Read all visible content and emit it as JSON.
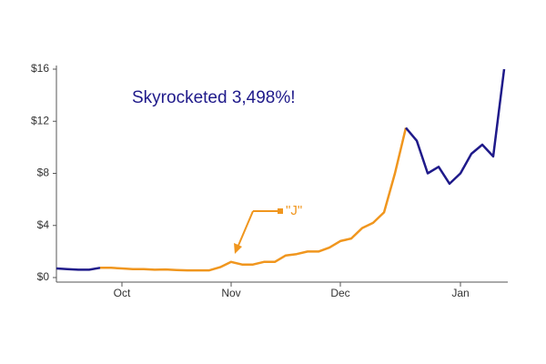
{
  "chart_data": {
    "type": "line",
    "annotations": [
      "Skyrocketed 3,498%!",
      "\"J\""
    ],
    "categories": [
      null,
      null,
      null,
      null,
      null,
      null,
      "Oct",
      null,
      null,
      null,
      null,
      null,
      null,
      null,
      null,
      null,
      "Nov",
      null,
      null,
      null,
      null,
      null,
      null,
      null,
      null,
      null,
      "Dec",
      null,
      null,
      null,
      null,
      null,
      null,
      null,
      null,
      null,
      null,
      "Jan",
      null,
      null,
      null,
      null
    ],
    "series": [
      {
        "color": "#f0961e",
        "values": [
          null,
          null,
          null,
          null,
          0.75,
          0.75,
          0.7,
          0.65,
          0.65,
          0.6,
          0.62,
          0.58,
          0.55,
          0.55,
          0.55,
          0.8,
          1.2,
          1.0,
          1.0,
          1.2,
          1.2,
          1.7,
          1.8,
          2.0,
          2.0,
          2.3,
          2.8,
          3.0,
          3.8,
          4.2,
          5.0,
          8.0,
          11.5,
          null,
          null,
          null,
          null,
          null,
          null,
          null,
          null,
          null
        ]
      },
      {
        "color": "#1f1a8a",
        "values": [
          0.7,
          0.65,
          0.6,
          0.6,
          0.75,
          null,
          null,
          null,
          null,
          null,
          null,
          null,
          null,
          null,
          null,
          null,
          null,
          null,
          null,
          null,
          null,
          null,
          null,
          null,
          null,
          null,
          null,
          null,
          null,
          null,
          null,
          null,
          11.5,
          10.5,
          8.0,
          8.5,
          7.2,
          8.0,
          9.5,
          10.2,
          9.3,
          16.0
        ]
      }
    ],
    "ylim": [
      0,
      16
    ],
    "yticks": [
      {
        "value": 0,
        "label": "$0"
      },
      {
        "value": 4,
        "label": "$4"
      },
      {
        "value": 8,
        "label": "$8"
      },
      {
        "value": 12,
        "label": "$12"
      },
      {
        "value": 16,
        "label": "$16"
      }
    ],
    "grid": false
  }
}
